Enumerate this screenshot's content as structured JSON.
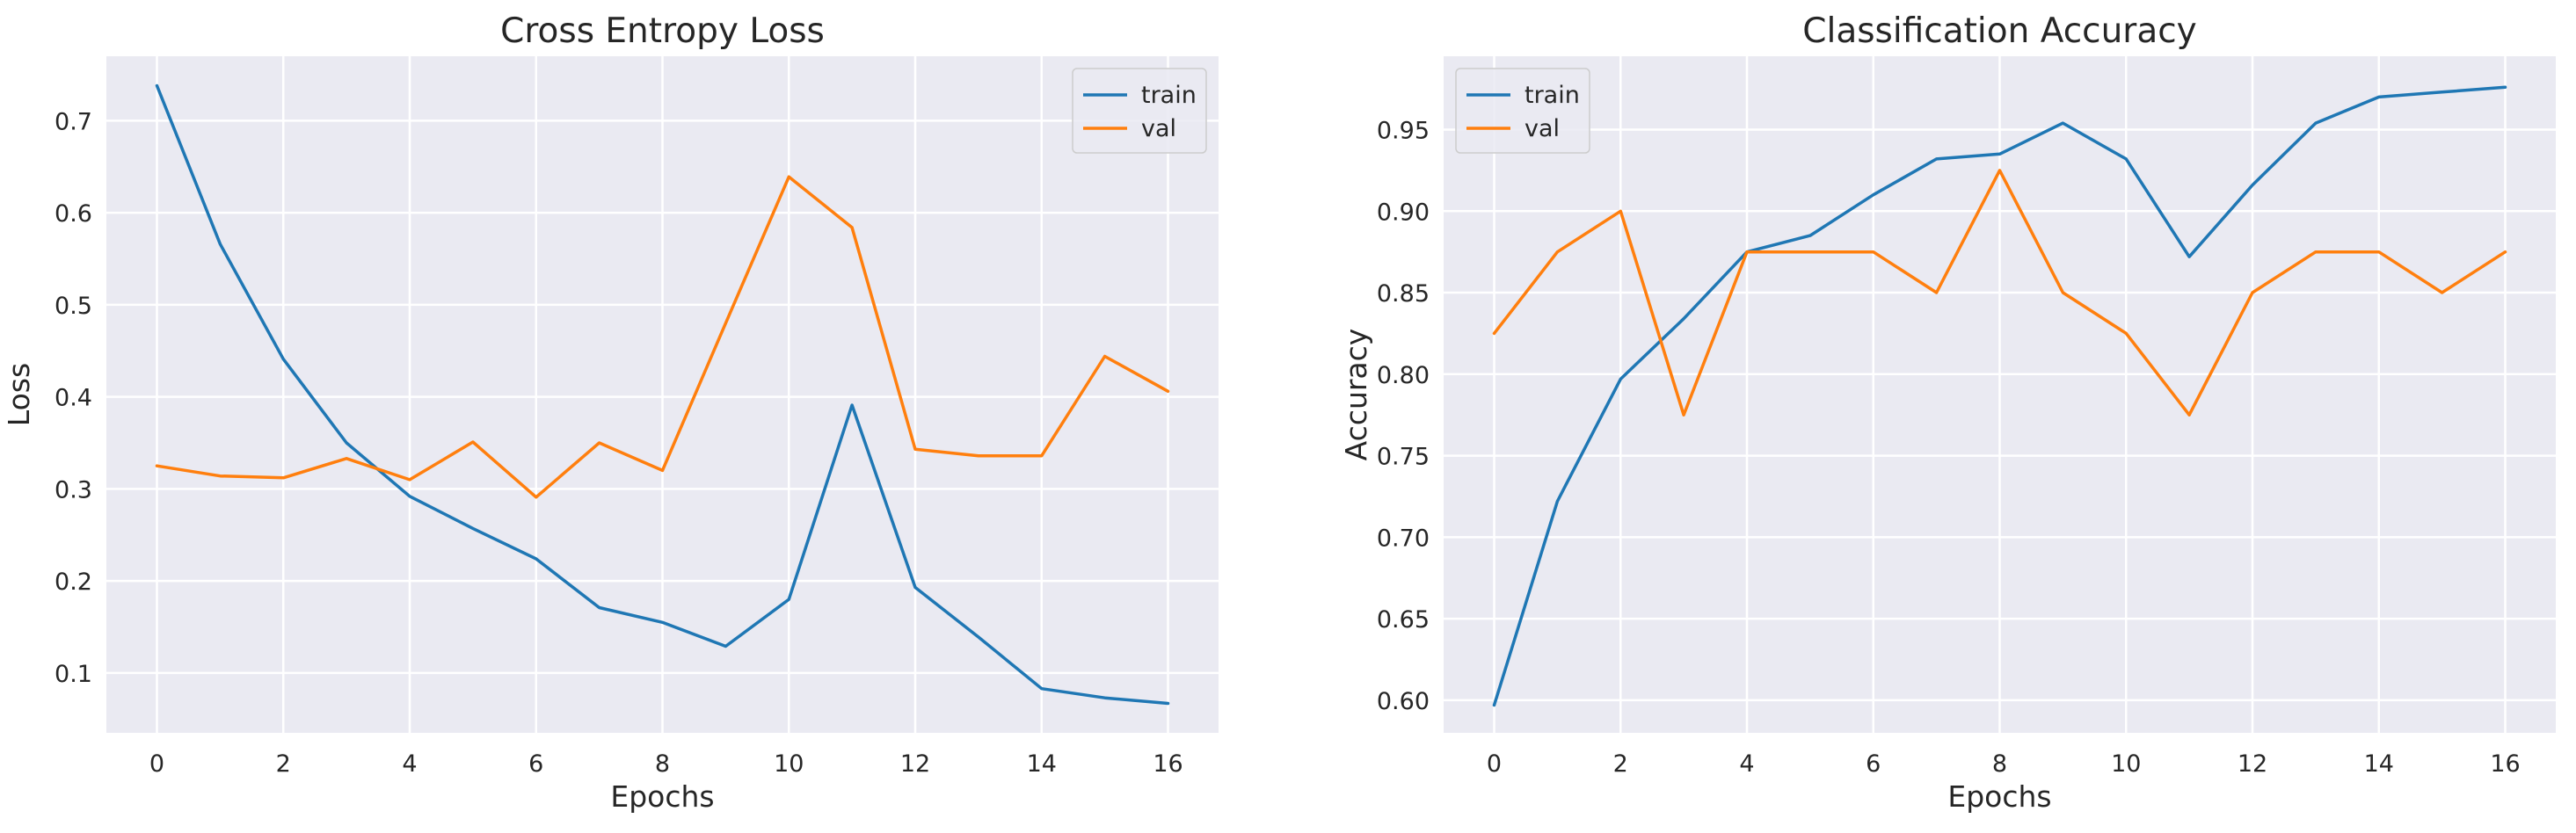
{
  "chart_data": [
    {
      "type": "line",
      "title": "Cross Entropy Loss",
      "xlabel": "Epochs",
      "ylabel": "Loss",
      "xlim": [
        -0.8,
        16.8
      ],
      "ylim": [
        0.035,
        0.77
      ],
      "xticks": [
        0,
        2,
        4,
        6,
        8,
        10,
        12,
        14,
        16
      ],
      "yticks": [
        0.1,
        0.2,
        0.3,
        0.4,
        0.5,
        0.6,
        0.7
      ],
      "grid": true,
      "legend": "top-right",
      "x": [
        0,
        1,
        2,
        3,
        4,
        5,
        6,
        7,
        8,
        9,
        10,
        11,
        12,
        13,
        14,
        15,
        16
      ],
      "series": [
        {
          "name": "train",
          "color": "#1f77b4",
          "values": [
            0.738,
            0.566,
            0.441,
            0.35,
            0.292,
            0.257,
            0.224,
            0.171,
            0.155,
            0.129,
            0.18,
            0.391,
            0.193,
            0.139,
            0.083,
            0.073,
            0.067
          ]
        },
        {
          "name": "val",
          "color": "#ff7f0e",
          "values": [
            0.325,
            0.314,
            0.312,
            0.333,
            0.31,
            0.351,
            0.291,
            0.35,
            0.32,
            0.48,
            0.639,
            0.584,
            0.343,
            0.336,
            0.336,
            0.444,
            0.406
          ]
        }
      ]
    },
    {
      "type": "line",
      "title": "Classification Accuracy",
      "xlabel": "Epochs",
      "ylabel": "Accuracy",
      "xlim": [
        -0.8,
        16.8
      ],
      "ylim": [
        0.58,
        0.995
      ],
      "xticks": [
        0,
        2,
        4,
        6,
        8,
        10,
        12,
        14,
        16
      ],
      "yticks": [
        0.6,
        0.65,
        0.7,
        0.75,
        0.8,
        0.85,
        0.9,
        0.95
      ],
      "grid": true,
      "legend": "top-left",
      "x": [
        0,
        1,
        2,
        3,
        4,
        5,
        6,
        7,
        8,
        9,
        10,
        11,
        12,
        13,
        14,
        15,
        16
      ],
      "series": [
        {
          "name": "train",
          "color": "#1f77b4",
          "values": [
            0.597,
            0.722,
            0.797,
            0.834,
            0.875,
            0.885,
            0.91,
            0.932,
            0.935,
            0.954,
            0.932,
            0.872,
            0.916,
            0.954,
            0.97,
            0.973,
            0.976
          ]
        },
        {
          "name": "val",
          "color": "#ff7f0e",
          "values": [
            0.825,
            0.875,
            0.9,
            0.775,
            0.875,
            0.875,
            0.875,
            0.85,
            0.925,
            0.85,
            0.825,
            0.775,
            0.85,
            0.875,
            0.875,
            0.85,
            0.875
          ]
        }
      ]
    }
  ]
}
